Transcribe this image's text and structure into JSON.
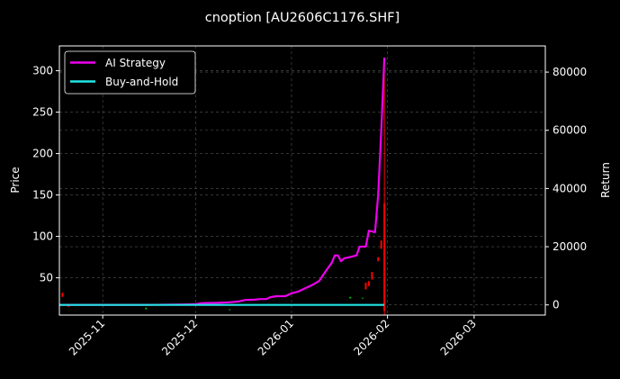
{
  "chart_data": {
    "type": "line",
    "title": "cnoption [AU2606C1176.SHF]",
    "ylabel_left": "Price",
    "ylabel_right": "Return",
    "xlim": [
      "2025-10-18",
      "2026-03-24"
    ],
    "ylim_left": [
      5,
      330
    ],
    "ylim_right": [
      -3500,
      89000
    ],
    "x_ticks": [
      "2025-11",
      "2025-12",
      "2026-01",
      "2026-02",
      "2026-03"
    ],
    "y_ticks_left": [
      50,
      100,
      150,
      200,
      250,
      300
    ],
    "y_ticks_right": [
      0,
      20000,
      40000,
      60000,
      80000
    ],
    "grid": true,
    "legend_position": "top-left",
    "colors": {
      "background": "#000000",
      "ai_strategy": "#ee00ee",
      "buy_and_hold": "#22e5e5",
      "candle_up": "#00c000",
      "candle_down": "#ff0000",
      "grid": "#555555"
    },
    "series": [
      {
        "name": "AI Strategy",
        "axis": "right",
        "color": "#ee00ee",
        "points": [
          [
            "2025-10-18",
            0
          ],
          [
            "2025-11-01",
            0
          ],
          [
            "2025-11-15",
            0
          ],
          [
            "2025-11-27",
            150
          ],
          [
            "2025-12-01",
            250
          ],
          [
            "2025-12-03",
            600
          ],
          [
            "2025-12-08",
            700
          ],
          [
            "2025-12-12",
            900
          ],
          [
            "2025-12-15",
            1200
          ],
          [
            "2025-12-17",
            1700
          ],
          [
            "2025-12-20",
            1800
          ],
          [
            "2025-12-22",
            2000
          ],
          [
            "2025-12-24",
            2000
          ],
          [
            "2025-12-25",
            2600
          ],
          [
            "2025-12-27",
            3000
          ],
          [
            "2025-12-30",
            3000
          ],
          [
            "2026-01-01",
            4000
          ],
          [
            "2026-01-03",
            4500
          ],
          [
            "2026-01-06",
            6000
          ],
          [
            "2026-01-08",
            7000
          ],
          [
            "2026-01-10",
            8300
          ],
          [
            "2026-01-12",
            11500
          ],
          [
            "2026-01-14",
            14500
          ],
          [
            "2026-01-15",
            17000
          ],
          [
            "2026-01-16",
            17000
          ],
          [
            "2026-01-17",
            15000
          ],
          [
            "2026-01-18",
            16000
          ],
          [
            "2026-01-20",
            16500
          ],
          [
            "2026-01-22",
            17000
          ],
          [
            "2026-01-23",
            20000
          ],
          [
            "2026-01-25",
            20000
          ],
          [
            "2026-01-26",
            25500
          ],
          [
            "2026-01-28",
            25000
          ],
          [
            "2026-01-29",
            38000
          ],
          [
            "2026-01-30",
            60000
          ],
          [
            "2026-01-31",
            85000
          ]
        ]
      },
      {
        "name": "Buy-and-Hold",
        "axis": "right",
        "color": "#22e5e5",
        "points": [
          [
            "2025-10-18",
            0
          ],
          [
            "2026-01-31",
            0
          ]
        ]
      }
    ],
    "price_bars": [
      {
        "date": "2025-10-19",
        "open": 27,
        "close": 32,
        "direction": "down"
      },
      {
        "date": "2025-10-21",
        "open": 15,
        "close": 18,
        "direction": "down"
      },
      {
        "date": "2025-11-15",
        "open": 12,
        "close": 14,
        "direction": "up"
      },
      {
        "date": "2025-12-12",
        "open": 11,
        "close": 12,
        "direction": "up"
      },
      {
        "date": "2026-01-20",
        "open": 25,
        "close": 27,
        "direction": "up"
      },
      {
        "date": "2026-01-24",
        "open": 25,
        "close": 26,
        "direction": "up"
      },
      {
        "date": "2026-01-25",
        "open": 36,
        "close": 44,
        "direction": "down"
      },
      {
        "date": "2026-01-26",
        "open": 40,
        "close": 46,
        "direction": "down"
      },
      {
        "date": "2026-01-27",
        "open": 48,
        "close": 57,
        "direction": "down"
      },
      {
        "date": "2026-01-29",
        "open": 70,
        "close": 75,
        "direction": "down"
      },
      {
        "date": "2026-01-30",
        "open": 85,
        "close": 95,
        "direction": "down"
      },
      {
        "date": "2026-01-31",
        "open": 10,
        "close": 140,
        "direction": "down",
        "high": 315,
        "low": 5
      }
    ]
  }
}
